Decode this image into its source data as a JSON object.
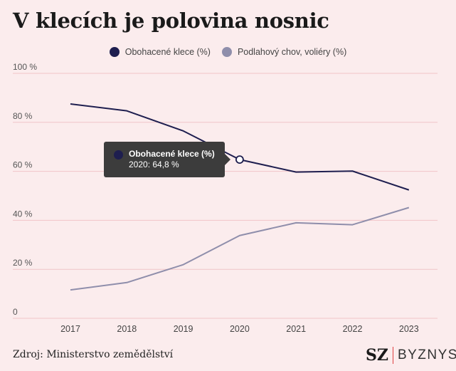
{
  "title": "V klecích je polovina nosnic",
  "source": "Zdroj: Ministerstvo zemědělství",
  "logo": {
    "brand": "SZ",
    "section": "BYZNYS"
  },
  "tooltip": {
    "series": "Obohacené klece (%)",
    "text": "2020: 64,8 %"
  },
  "chart_data": {
    "type": "line",
    "categories": [
      "2017",
      "2018",
      "2019",
      "2020",
      "2021",
      "2022",
      "2023"
    ],
    "y_ticks": [
      {
        "value": 0,
        "label": "0"
      },
      {
        "value": 20,
        "label": "20 %"
      },
      {
        "value": 40,
        "label": "40 %"
      },
      {
        "value": 60,
        "label": "60 %"
      },
      {
        "value": 80,
        "label": "80 %"
      },
      {
        "value": 100,
        "label": "100 %"
      }
    ],
    "ylim": [
      0,
      100
    ],
    "grid": true,
    "legend": "top-center",
    "series": [
      {
        "name": "Obohacené klece (%)",
        "color": "#1e1e4f",
        "values": [
          87.5,
          84.7,
          76.5,
          64.8,
          59.7,
          60.1,
          52.4
        ]
      },
      {
        "name": "Podlahový chov, voliéry (%)",
        "color": "#8f8eab",
        "values": [
          11.6,
          14.6,
          21.9,
          33.8,
          39.0,
          38.2,
          45.2
        ]
      }
    ],
    "highlight": {
      "series": 0,
      "index": 3
    }
  }
}
